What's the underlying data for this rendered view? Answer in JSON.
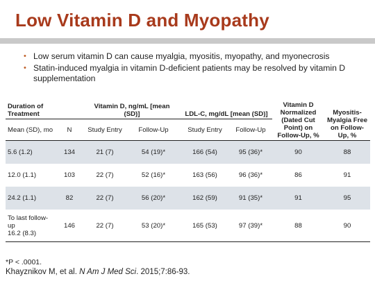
{
  "slide": {
    "title": "Low Vitamin D and Myopathy",
    "bullets": [
      "Low serum vitamin D can cause myalgia, myositis, myopathy, and myonecrosis",
      "Statin-induced myalgia in vitamin D-deficient patients may be resolved by vitamin D supplementation"
    ],
    "bullet_glyph": "•",
    "accent_color": "#a83a1c"
  },
  "table": {
    "group_headers": {
      "duration": "Duration of Treatment",
      "vitd": "Vitamin D, ng/mL [mean (SD)]",
      "ldl": "LDL-C, mg/dL [mean (SD)]",
      "normalized": "Vitamin D Normalized (Dated Cut Point) on Follow-Up, %",
      "myositis": "Myositis-Myalgia Free on Follow-Up, %"
    },
    "sub_headers": {
      "duration": "Mean (SD), mo",
      "n": "N",
      "vitd_entry": "Study Entry",
      "vitd_follow": "Follow-Up",
      "ldl_entry": "Study Entry",
      "ldl_follow": "Follow-Up"
    },
    "rows": [
      {
        "duration": "5.6 (1.2)",
        "n": "134",
        "vitd_entry": "21 (7)",
        "vitd_follow": "54 (19)*",
        "ldl_entry": "166 (54)",
        "ldl_follow": "95 (36)*",
        "normalized": "90",
        "myositis": "88"
      },
      {
        "duration": "12.0 (1.1)",
        "n": "103",
        "vitd_entry": "22 (7)",
        "vitd_follow": "52 (16)*",
        "ldl_entry": "163 (56)",
        "ldl_follow": "96 (36)*",
        "normalized": "86",
        "myositis": "91"
      },
      {
        "duration": "24.2 (1.1)",
        "n": "82",
        "vitd_entry": "22 (7)",
        "vitd_follow": "56 (20)*",
        "ldl_entry": "162 (59)",
        "ldl_follow": "91 (35)*",
        "normalized": "91",
        "myositis": "95"
      },
      {
        "duration_line1": "To last follow-up",
        "duration_line2": "16.2 (8.3)",
        "n": "146",
        "vitd_entry": "22 (7)",
        "vitd_follow": "53 (20)*",
        "ldl_entry": "165 (53)",
        "ldl_follow": "97 (39)*",
        "normalized": "88",
        "myositis": "90"
      }
    ],
    "row_shade_color": "#dde2e8"
  },
  "footnote": "*P < .0001.",
  "citation": {
    "authors": "Khayznikov M, et al. ",
    "journal": "N Am J Med Sci",
    "rest": ". 2015;7:86-93."
  }
}
